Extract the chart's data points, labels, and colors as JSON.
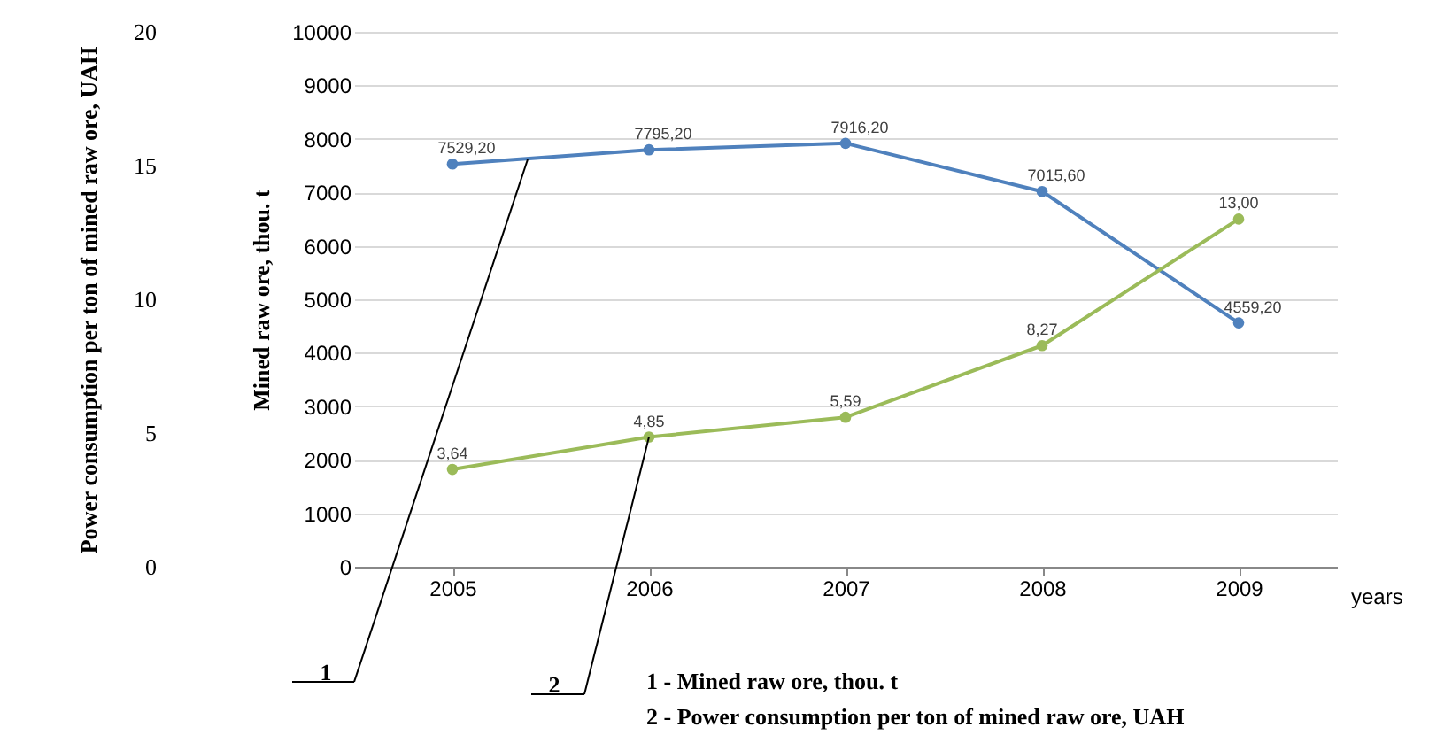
{
  "chart_data": {
    "type": "line",
    "categories": [
      "2005",
      "2006",
      "2007",
      "2008",
      "2009"
    ],
    "xlabel": "years",
    "ylabel": "Mined raw ore, thou. t",
    "y2label": "Power consumption per ton of mined raw ore, UAH",
    "ylim": [
      0,
      10000
    ],
    "yticks": [
      0,
      1000,
      2000,
      3000,
      4000,
      5000,
      6000,
      7000,
      8000,
      9000,
      10000
    ],
    "y2lim": [
      0,
      20
    ],
    "y2ticks": [
      0,
      5,
      10,
      15,
      20
    ],
    "grid": "y",
    "marker": "circle",
    "legend": false,
    "series": [
      {
        "color": "#4f81bd",
        "values": [
          7529.2,
          7795.2,
          7916.2,
          7015.6,
          4559.2
        ],
        "value_labels": [
          "7529,20",
          "7795,20",
          "7916,20",
          "7015,60",
          "4559,20"
        ]
      },
      {
        "color": "#9bbb59",
        "axis": "y2",
        "values": [
          3.64,
          4.85,
          5.59,
          8.27,
          13.0
        ],
        "value_labels": [
          "3,64",
          "4,85",
          "5,59",
          "8,27",
          "13,00"
        ]
      }
    ],
    "annotations": [
      "1",
      {
        "text": "2",
        "x": "2006",
        "y": 2425
      },
      "1 - Mined raw ore, thou. t",
      "2 - Power consumption per ton of mined raw ore, UAH"
    ]
  }
}
